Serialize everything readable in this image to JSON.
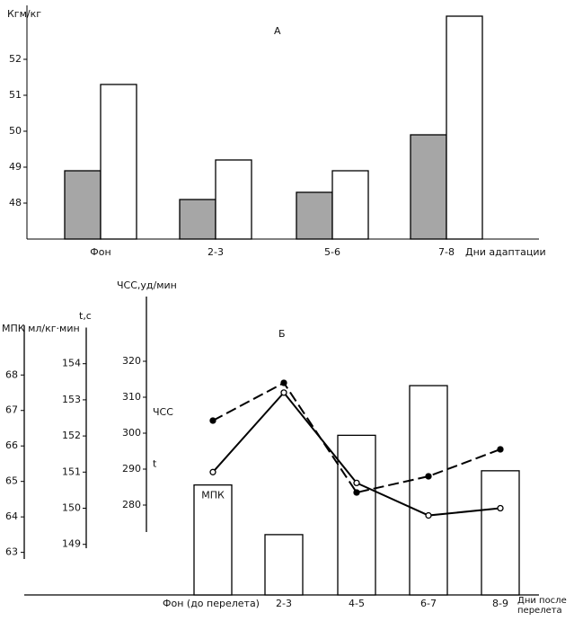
{
  "chart_data": [
    {
      "type": "bar",
      "label": "А",
      "ylabel": "Кгм/кг",
      "xlabel": "Дни адаптации",
      "categories": [
        "Фон",
        "2-3",
        "5-6",
        "7-8"
      ],
      "series": [
        {
          "color": "#a6a6a6",
          "values": [
            48.9,
            48.1,
            48.3,
            49.9
          ]
        },
        {
          "color": "#ffffff",
          "values": [
            51.3,
            49.2,
            48.9,
            53.2
          ]
        }
      ],
      "ylim": [
        47,
        53.5
      ],
      "yticks": [
        48,
        49,
        50,
        51,
        52
      ]
    },
    {
      "type": "combo",
      "label": "Б",
      "xlabel": "Дни после перелета",
      "categories": [
        "Фон (до перелета)",
        "2-3",
        "4-5",
        "6-7",
        "8-9"
      ],
      "ylabel": "МПК мл/кг·мин",
      "ylim": [
        61.8,
        69.4
      ],
      "yticks": [
        63,
        64,
        65,
        66,
        67,
        68
      ],
      "y2label": "t,c",
      "y2lim": [
        147.6,
        155
      ],
      "y2ticks": [
        149,
        150,
        151,
        152,
        153,
        154
      ],
      "y3label": "ЧСС,уд/мин",
      "y3lim": [
        255,
        338
      ],
      "y3ticks": [
        280,
        290,
        300,
        310,
        320
      ],
      "series": [
        {
          "name": "МПК",
          "type": "bar",
          "axis": "y",
          "color": "#ffffff",
          "values": [
            64.9,
            63.5,
            66.3,
            67.7,
            65.3
          ]
        },
        {
          "name": "t",
          "type": "line",
          "axis": "y2",
          "color": "#000000",
          "style": "solid",
          "marker": "open",
          "values": [
            151,
            153.2,
            150.7,
            149.8,
            150
          ]
        },
        {
          "name": "ЧСС",
          "type": "line",
          "axis": "y3",
          "color": "#000000",
          "style": "dashed",
          "marker": "filled",
          "values": [
            303.5,
            314,
            283.5,
            288,
            295.5
          ]
        }
      ]
    }
  ]
}
